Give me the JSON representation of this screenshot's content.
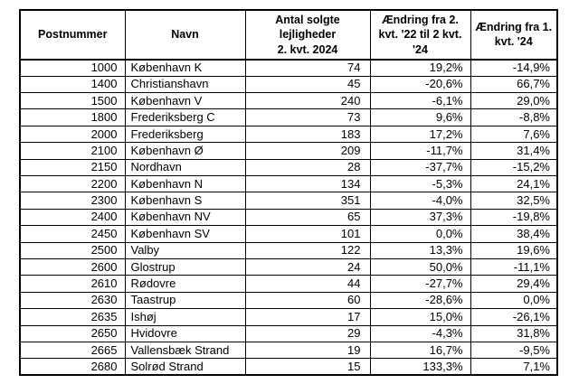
{
  "chart_data": {
    "type": "table",
    "title": "Antal solgte lejligheder 2. kvt. 2024",
    "columns": [
      "Postnummer",
      "Navn",
      "Antal solgte lejligheder 2. kvt. 2024",
      "Ændring fra 2. kvt. '22 til 2 kvt. '24",
      "Ændring fra 1. kvt. '24"
    ],
    "rows": [
      [
        "1000",
        "København K",
        74,
        "19,2%",
        "-14,9%"
      ],
      [
        "1400",
        "Christianshavn",
        45,
        "-20,6%",
        "66,7%"
      ],
      [
        "1500",
        "København V",
        240,
        "-6,1%",
        "29,0%"
      ],
      [
        "1800",
        "Frederiksberg C",
        73,
        "9,6%",
        "-8,8%"
      ],
      [
        "2000",
        "Frederiksberg",
        183,
        "17,2%",
        "7,6%"
      ],
      [
        "2100",
        "København Ø",
        209,
        "-11,7%",
        "31,4%"
      ],
      [
        "2150",
        "Nordhavn",
        28,
        "-37,7%",
        "-15,2%"
      ],
      [
        "2200",
        "København N",
        134,
        "-5,3%",
        "24,1%"
      ],
      [
        "2300",
        "København S",
        351,
        "-4,0%",
        "32,5%"
      ],
      [
        "2400",
        "København NV",
        65,
        "37,3%",
        "-19,8%"
      ],
      [
        "2450",
        "København SV",
        101,
        "0,0%",
        "38,4%"
      ],
      [
        "2500",
        "Valby",
        122,
        "13,3%",
        "19,6%"
      ],
      [
        "2600",
        "Glostrup",
        24,
        "50,0%",
        "-11,1%"
      ],
      [
        "2610",
        "Rødovre",
        44,
        "-27,7%",
        "29,4%"
      ],
      [
        "2630",
        "Taastrup",
        60,
        "-28,6%",
        "0,0%"
      ],
      [
        "2635",
        "Ishøj",
        17,
        "15,0%",
        "-26,1%"
      ],
      [
        "2650",
        "Hvidovre",
        29,
        "-4,3%",
        "31,8%"
      ],
      [
        "2665",
        "Vallensbæk Strand",
        19,
        "16,7%",
        "-9,5%"
      ],
      [
        "2680",
        "Solrød Strand",
        15,
        "133,3%",
        "7,1%"
      ]
    ]
  },
  "table": {
    "headers": [
      {
        "label": "Postnummer"
      },
      {
        "label": "Navn"
      },
      {
        "label": "Antal solgte lejligheder\n2. kvt. 2024"
      },
      {
        "label": "Ændring fra 2.\nkvt. '22 til 2 kvt.\n'24"
      },
      {
        "label": "Ændring fra 1.\nkvt. '24"
      }
    ]
  },
  "colors": {
    "background": "#ffffff",
    "border": "#000000",
    "text": "#000000"
  }
}
